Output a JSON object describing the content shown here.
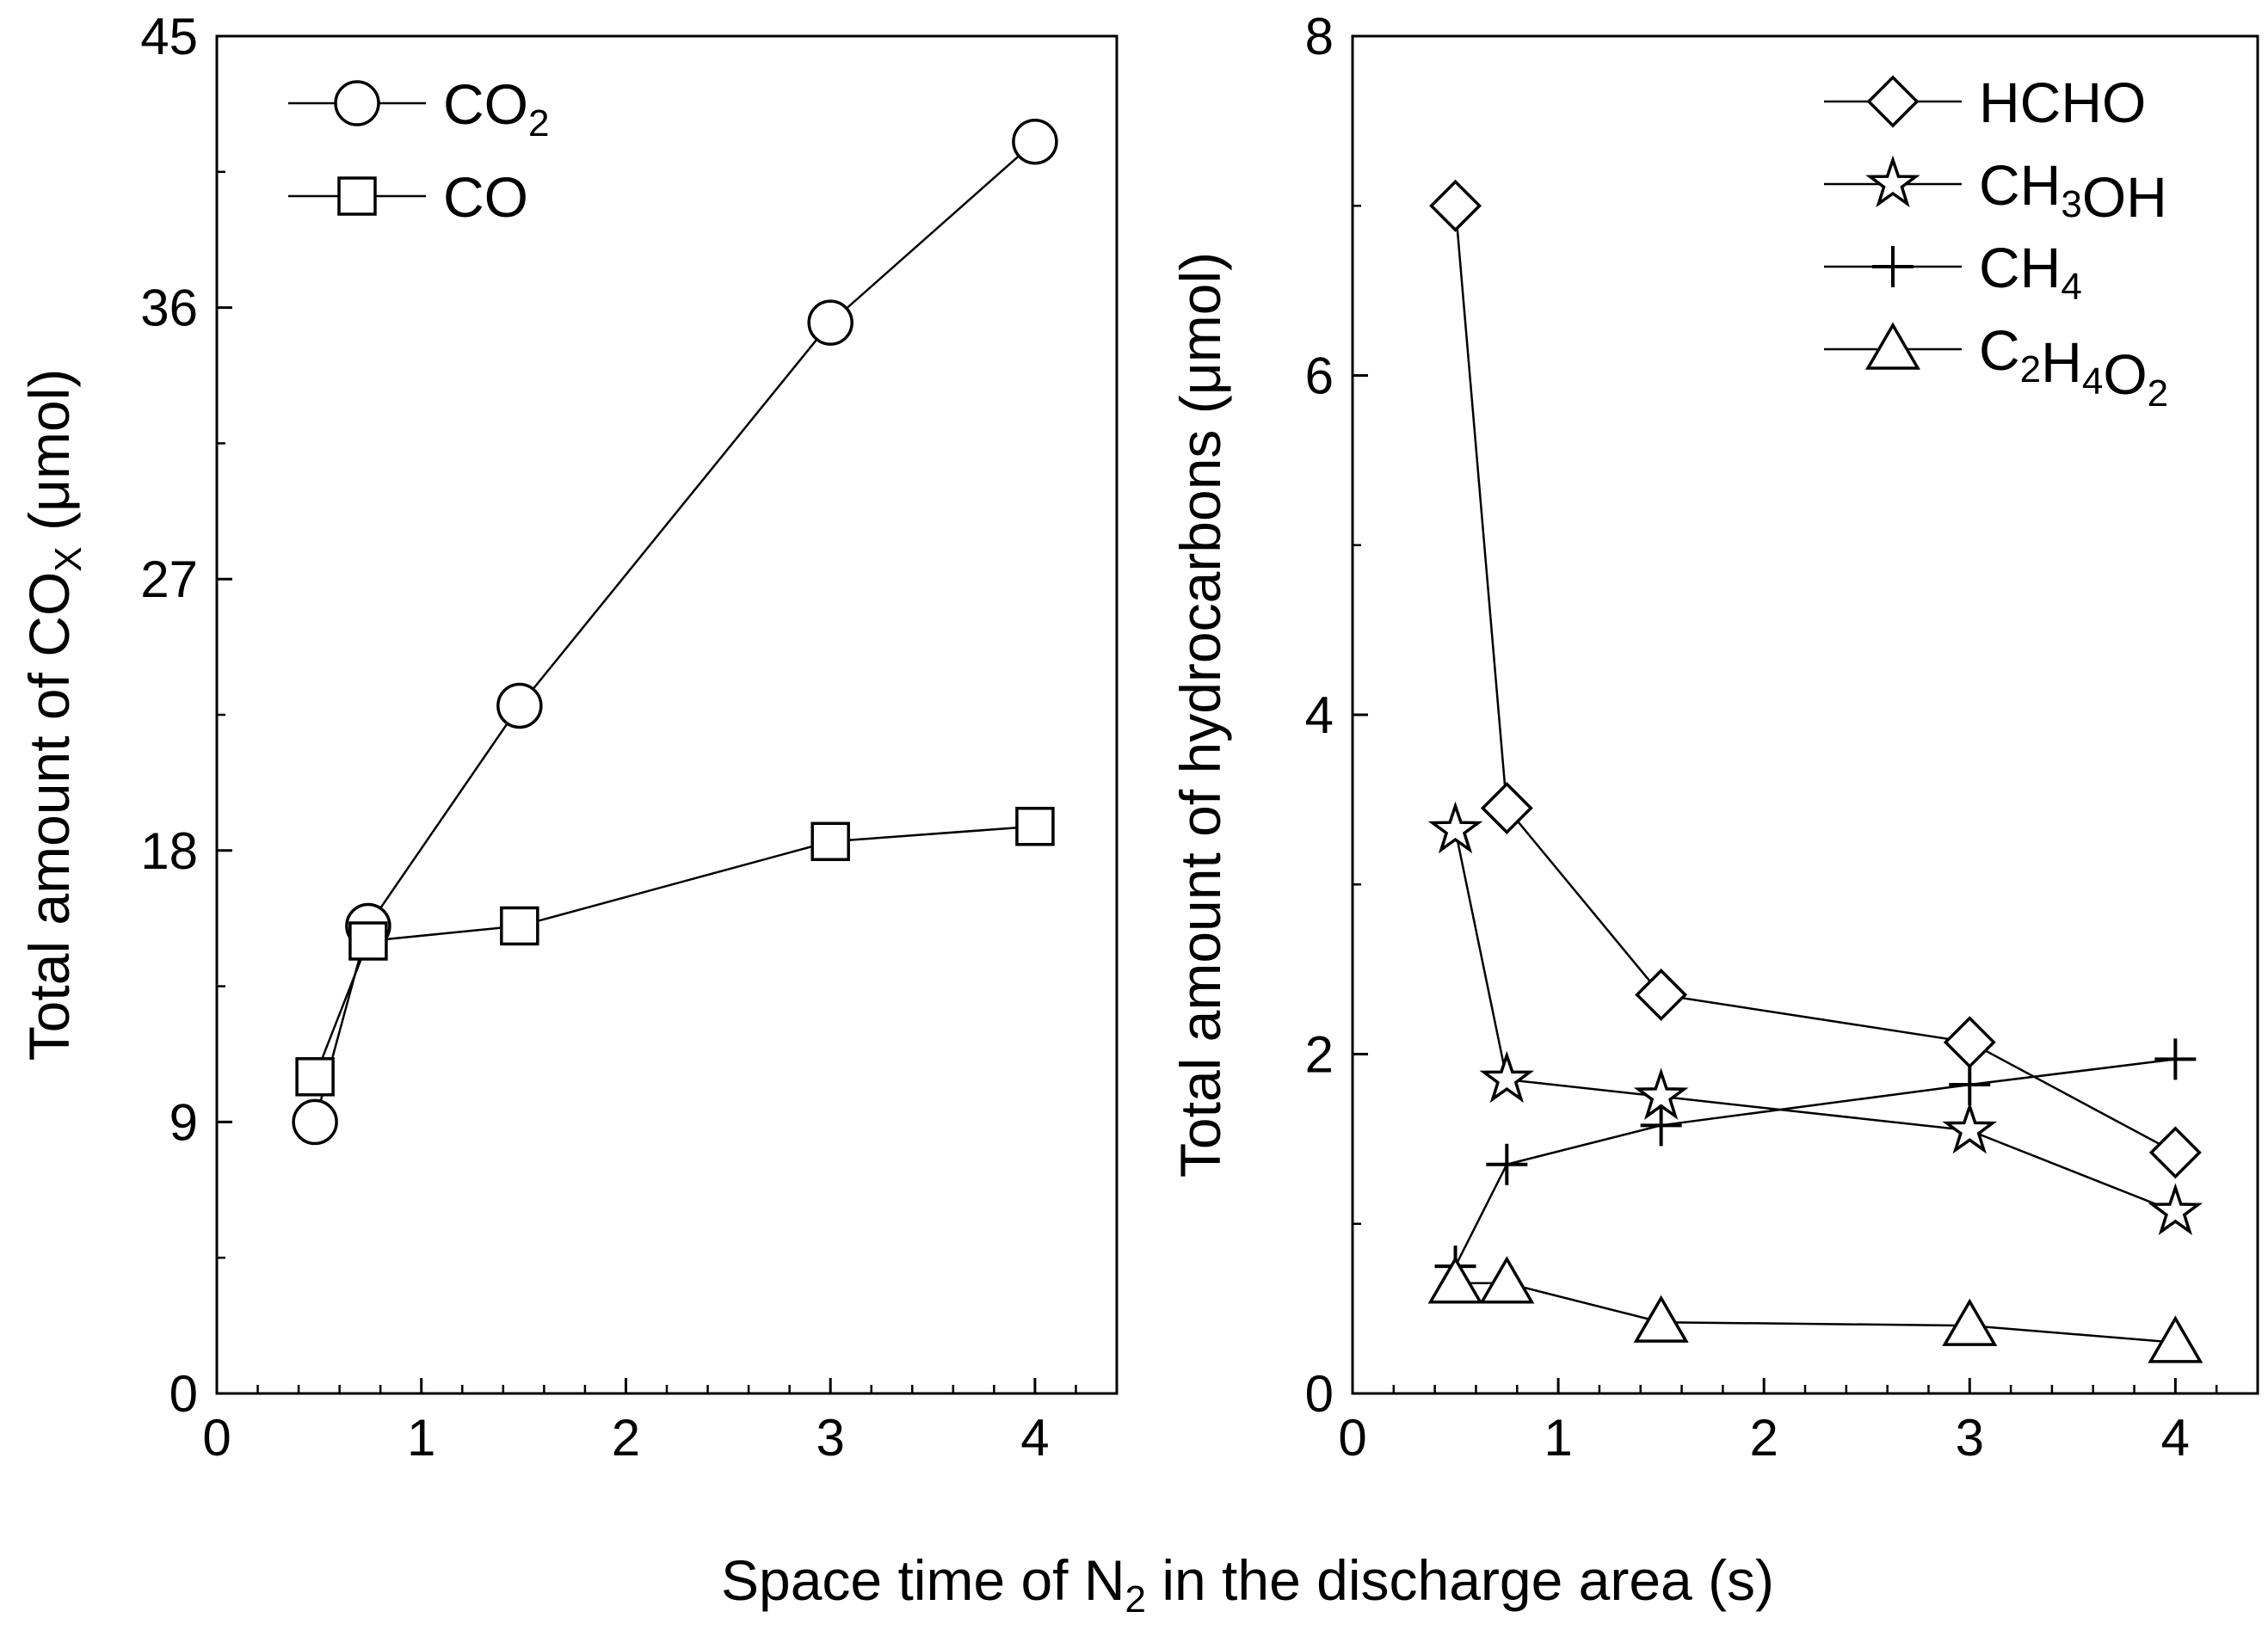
{
  "figure": {
    "xlabel_main": "Space time of N",
    "xlabel_sub": "2",
    "xlabel_tail": " in the discharge area (s)"
  },
  "chart_data": [
    {
      "type": "line",
      "ylabel_main": "Total amount of CO",
      "ylabel_sub": "X",
      "ylabel_tail": " (μmol)",
      "xlim": [
        0,
        4.4
      ],
      "ylim": [
        0,
        45
      ],
      "xticks": [
        0,
        1,
        2,
        3,
        4
      ],
      "xtick_labels": [
        "0",
        "1",
        "2",
        "3",
        "4"
      ],
      "yticks": [
        0,
        9,
        18,
        27,
        36,
        45
      ],
      "ytick_labels": [
        "0",
        "9",
        "18",
        "27",
        "36",
        "45"
      ],
      "legend_position": "top-left",
      "series": [
        {
          "name_main": "CO",
          "name_sub": "2",
          "marker": "circle",
          "x": [
            0.48,
            0.74,
            1.48,
            3.0,
            4.0
          ],
          "y": [
            9.0,
            15.5,
            22.8,
            35.5,
            41.5
          ]
        },
        {
          "name_main": "CO",
          "name_sub": "",
          "marker": "square",
          "x": [
            0.48,
            0.74,
            1.48,
            3.0,
            4.0
          ],
          "y": [
            10.5,
            15.0,
            15.5,
            18.3,
            18.8
          ]
        }
      ]
    },
    {
      "type": "line",
      "ylabel_main": "Total amount of hydrocarbons (μmol)",
      "ylabel_sub": "",
      "ylabel_tail": "",
      "xlim": [
        0,
        4.4
      ],
      "ylim": [
        0,
        8
      ],
      "xticks": [
        0,
        1,
        2,
        3,
        4
      ],
      "xtick_labels": [
        "0",
        "1",
        "2",
        "3",
        "4"
      ],
      "yticks": [
        0,
        2,
        4,
        6,
        8
      ],
      "ytick_labels": [
        "0",
        "2",
        "4",
        "6",
        "8"
      ],
      "legend_position": "top-right",
      "series": [
        {
          "name_parts": [
            [
              "HCHO",
              ""
            ]
          ],
          "marker": "diamond",
          "x": [
            0.5,
            0.75,
            1.5,
            3.0,
            4.0
          ],
          "y": [
            7.0,
            3.45,
            2.35,
            2.07,
            1.42
          ]
        },
        {
          "name_parts": [
            [
              "CH",
              "3"
            ],
            [
              "OH",
              ""
            ]
          ],
          "marker": "star",
          "x": [
            0.5,
            0.75,
            1.5,
            3.0,
            4.0
          ],
          "y": [
            3.32,
            1.85,
            1.75,
            1.55,
            1.07
          ]
        },
        {
          "name_parts": [
            [
              "CH",
              "4"
            ]
          ],
          "marker": "plus",
          "x": [
            0.5,
            0.75,
            1.5,
            3.0,
            4.0
          ],
          "y": [
            0.75,
            1.35,
            1.58,
            1.82,
            1.97
          ]
        },
        {
          "name_parts": [
            [
              "C",
              "2"
            ],
            [
              "H",
              "4"
            ],
            [
              "O",
              "2"
            ]
          ],
          "marker": "triangle",
          "x": [
            0.5,
            0.75,
            1.5,
            3.0,
            4.0
          ],
          "y": [
            0.65,
            0.65,
            0.42,
            0.4,
            0.3
          ]
        }
      ]
    }
  ]
}
